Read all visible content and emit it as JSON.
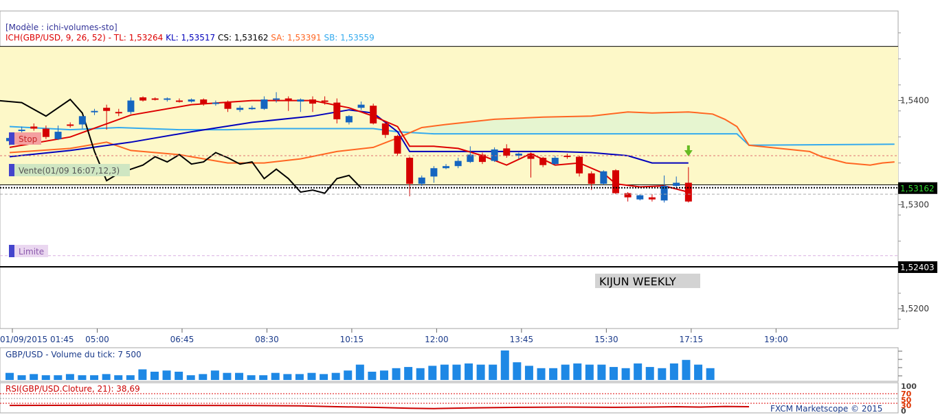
{
  "main": {
    "model_label": "[Modèle : ichi-volumes-sto]",
    "ichimoku_prefix": "ICH(GBP/USD, 9, 26, 52) - ",
    "tl": "TL: 1,53264",
    "kl": "KL: 1,53517",
    "cs": "CS: 1,53162",
    "sa": "SA: 1,53391",
    "sb": "SB: 1,53559",
    "stop_label": "Stop",
    "sell_label": "Vente(01/09 16:07,12,3)",
    "limit_label": "Limite",
    "kijun_label": "KIJUN WEEKLY",
    "current_price_badge": "1,53162",
    "kijun_price_badge": "1,52403"
  },
  "volume_panel": {
    "title": "GBP/USD - Volume du tick: 7 500"
  },
  "rsi_panel": {
    "title": "RSI(GBP/USD.Cloture, 21): 38,69",
    "levels": [
      "100",
      "70",
      "50",
      "30",
      "0"
    ]
  },
  "footer": {
    "copyright": "FXCM Marketscope © 2015"
  },
  "colors": {
    "tenkan": "#dd0000",
    "kijun": "#0000bb",
    "chikou": "#000000",
    "senkou_a": "#ff6622",
    "senkou_b": "#33aaee",
    "bull_candle": "#1565c0",
    "bear_candle": "#d50000",
    "volume_bar": "#1e88e5",
    "band_fill": "#fdf8c8",
    "cloud_fill": "#e6f5d0",
    "price_badge_bg": "#000000",
    "price_badge_fg": "#33dd33"
  },
  "chart_data": {
    "type": "candlestick",
    "symbol": "GBP/USD",
    "x_tick_labels": [
      "01/09/2015 01:45",
      "05:00",
      "06:45",
      "08:30",
      "10:15",
      "12:00",
      "13:45",
      "15:30",
      "17:15",
      "19:00"
    ],
    "y_tick_labels": [
      "1,5400",
      "1,5300",
      "1,5200"
    ],
    "y_range": [
      1.5181,
      1.5486
    ],
    "reference_levels": {
      "upper_band": 1.5452,
      "lower_band": 1.5319,
      "current_price": 1.53162,
      "kijun_weekly": 1.52403,
      "stop": 1.5347,
      "entry": 1.5316,
      "limit": 1.5251
    },
    "candles": [
      {
        "o": 1.5361,
        "h": 1.5365,
        "l": 1.5357,
        "c": 1.5364
      },
      {
        "o": 1.5371,
        "h": 1.5375,
        "l": 1.5368,
        "c": 1.5372
      },
      {
        "o": 1.5375,
        "h": 1.5378,
        "l": 1.5371,
        "c": 1.5373
      },
      {
        "o": 1.5373,
        "h": 1.5376,
        "l": 1.5363,
        "c": 1.5365
      },
      {
        "o": 1.5363,
        "h": 1.5376,
        "l": 1.5362,
        "c": 1.537
      },
      {
        "o": 1.5377,
        "h": 1.5379,
        "l": 1.5374,
        "c": 1.5376
      },
      {
        "o": 1.5377,
        "h": 1.5384,
        "l": 1.5373,
        "c": 1.5385
      },
      {
        "o": 1.5389,
        "h": 1.5392,
        "l": 1.5386,
        "c": 1.539
      },
      {
        "o": 1.5393,
        "h": 1.5396,
        "l": 1.5372,
        "c": 1.539
      },
      {
        "o": 1.5389,
        "h": 1.5392,
        "l": 1.5385,
        "c": 1.5388
      },
      {
        "o": 1.5389,
        "h": 1.5403,
        "l": 1.5387,
        "c": 1.54
      },
      {
        "o": 1.5403,
        "h": 1.5404,
        "l": 1.5399,
        "c": 1.54
      },
      {
        "o": 1.5402,
        "h": 1.5403,
        "l": 1.54,
        "c": 1.5401
      },
      {
        "o": 1.5401,
        "h": 1.5403,
        "l": 1.5399,
        "c": 1.5402
      },
      {
        "o": 1.54,
        "h": 1.5402,
        "l": 1.5398,
        "c": 1.5399
      },
      {
        "o": 1.5399,
        "h": 1.5402,
        "l": 1.5398,
        "c": 1.5401
      },
      {
        "o": 1.5401,
        "h": 1.5402,
        "l": 1.5395,
        "c": 1.5397
      },
      {
        "o": 1.5397,
        "h": 1.54,
        "l": 1.5395,
        "c": 1.5398
      },
      {
        "o": 1.5398,
        "h": 1.54,
        "l": 1.5389,
        "c": 1.5392
      },
      {
        "o": 1.5391,
        "h": 1.5395,
        "l": 1.5389,
        "c": 1.5393
      },
      {
        "o": 1.5393,
        "h": 1.5395,
        "l": 1.5391,
        "c": 1.5393
      },
      {
        "o": 1.5392,
        "h": 1.5404,
        "l": 1.5391,
        "c": 1.5401
      },
      {
        "o": 1.5401,
        "h": 1.5408,
        "l": 1.5398,
        "c": 1.5402
      },
      {
        "o": 1.5402,
        "h": 1.5404,
        "l": 1.539,
        "c": 1.54
      },
      {
        "o": 1.5399,
        "h": 1.5402,
        "l": 1.5389,
        "c": 1.5401
      },
      {
        "o": 1.5401,
        "h": 1.5404,
        "l": 1.5389,
        "c": 1.5397
      },
      {
        "o": 1.54,
        "h": 1.5404,
        "l": 1.5396,
        "c": 1.5399
      },
      {
        "o": 1.5398,
        "h": 1.5402,
        "l": 1.5378,
        "c": 1.5382
      },
      {
        "o": 1.5379,
        "h": 1.5386,
        "l": 1.5377,
        "c": 1.5385
      },
      {
        "o": 1.5393,
        "h": 1.5399,
        "l": 1.5391,
        "c": 1.5396
      },
      {
        "o": 1.5395,
        "h": 1.5397,
        "l": 1.5377,
        "c": 1.5378
      },
      {
        "o": 1.5378,
        "h": 1.5379,
        "l": 1.5364,
        "c": 1.5367
      },
      {
        "o": 1.5366,
        "h": 1.5367,
        "l": 1.5347,
        "c": 1.5349
      },
      {
        "o": 1.5345,
        "h": 1.5346,
        "l": 1.5308,
        "c": 1.532
      },
      {
        "o": 1.532,
        "h": 1.5328,
        "l": 1.5318,
        "c": 1.5326
      },
      {
        "o": 1.5327,
        "h": 1.5337,
        "l": 1.5321,
        "c": 1.5335
      },
      {
        "o": 1.5335,
        "h": 1.5339,
        "l": 1.5334,
        "c": 1.5337
      },
      {
        "o": 1.5337,
        "h": 1.5345,
        "l": 1.5335,
        "c": 1.5342
      },
      {
        "o": 1.5341,
        "h": 1.5356,
        "l": 1.534,
        "c": 1.5348
      },
      {
        "o": 1.5348,
        "h": 1.535,
        "l": 1.5339,
        "c": 1.5341
      },
      {
        "o": 1.5342,
        "h": 1.5355,
        "l": 1.5341,
        "c": 1.5353
      },
      {
        "o": 1.5354,
        "h": 1.5358,
        "l": 1.5345,
        "c": 1.5347
      },
      {
        "o": 1.5347,
        "h": 1.535,
        "l": 1.5344,
        "c": 1.5349
      },
      {
        "o": 1.5349,
        "h": 1.535,
        "l": 1.5326,
        "c": 1.5344
      },
      {
        "o": 1.5345,
        "h": 1.5346,
        "l": 1.5336,
        "c": 1.5338
      },
      {
        "o": 1.5339,
        "h": 1.5347,
        "l": 1.5338,
        "c": 1.5345
      },
      {
        "o": 1.5347,
        "h": 1.5349,
        "l": 1.5344,
        "c": 1.5346
      },
      {
        "o": 1.5346,
        "h": 1.5347,
        "l": 1.5327,
        "c": 1.533
      },
      {
        "o": 1.533,
        "h": 1.5332,
        "l": 1.5314,
        "c": 1.532
      },
      {
        "o": 1.532,
        "h": 1.5333,
        "l": 1.5319,
        "c": 1.5332
      },
      {
        "o": 1.5333,
        "h": 1.5334,
        "l": 1.531,
        "c": 1.5311
      },
      {
        "o": 1.5311,
        "h": 1.5312,
        "l": 1.5303,
        "c": 1.5307
      },
      {
        "o": 1.5305,
        "h": 1.531,
        "l": 1.5304,
        "c": 1.5309
      },
      {
        "o": 1.5307,
        "h": 1.531,
        "l": 1.5303,
        "c": 1.5305
      },
      {
        "o": 1.5304,
        "h": 1.5328,
        "l": 1.5302,
        "c": 1.5318
      },
      {
        "o": 1.5318,
        "h": 1.5327,
        "l": 1.5315,
        "c": 1.5321
      },
      {
        "o": 1.5321,
        "h": 1.5336,
        "l": 1.5302,
        "c": 1.5303
      }
    ],
    "tenkan_sen": [
      [
        0,
        1.5355
      ],
      [
        5,
        1.5365
      ],
      [
        10,
        1.5386
      ],
      [
        15,
        1.5396
      ],
      [
        20,
        1.54
      ],
      [
        25,
        1.54
      ],
      [
        28,
        1.5393
      ],
      [
        30,
        1.5385
      ],
      [
        32,
        1.5375
      ],
      [
        33,
        1.5356
      ],
      [
        35,
        1.5356
      ],
      [
        37,
        1.5354
      ],
      [
        39,
        1.5347
      ],
      [
        41,
        1.5338
      ],
      [
        43,
        1.5349
      ],
      [
        45,
        1.5338
      ],
      [
        47,
        1.534
      ],
      [
        49,
        1.533
      ],
      [
        50,
        1.532
      ],
      [
        52,
        1.5317
      ],
      [
        54,
        1.5318
      ],
      [
        56,
        1.5312
      ]
    ],
    "kijun_sen": [
      [
        0,
        1.5346
      ],
      [
        5,
        1.5352
      ],
      [
        10,
        1.536
      ],
      [
        15,
        1.537
      ],
      [
        20,
        1.5379
      ],
      [
        25,
        1.5385
      ],
      [
        28,
        1.5391
      ],
      [
        30,
        1.5388
      ],
      [
        32,
        1.537
      ],
      [
        33,
        1.5351
      ],
      [
        39,
        1.5351
      ],
      [
        45,
        1.5351
      ],
      [
        48,
        1.535
      ],
      [
        51,
        1.5347
      ],
      [
        53,
        1.534
      ],
      [
        56,
        1.534
      ]
    ],
    "chikou_span": [
      [
        -1,
        1.54
      ],
      [
        1,
        1.5398
      ],
      [
        3,
        1.5385
      ],
      [
        5,
        1.5401
      ],
      [
        6,
        1.5388
      ],
      [
        7,
        1.5351
      ],
      [
        8,
        1.5323
      ],
      [
        9,
        1.533
      ],
      [
        10,
        1.5334
      ],
      [
        11,
        1.5338
      ],
      [
        12,
        1.5346
      ],
      [
        13,
        1.5341
      ],
      [
        14,
        1.5348
      ],
      [
        15,
        1.5339
      ],
      [
        16,
        1.5341
      ],
      [
        17,
        1.535
      ],
      [
        18,
        1.5345
      ],
      [
        19,
        1.5339
      ],
      [
        20,
        1.5341
      ],
      [
        21,
        1.5325
      ],
      [
        22,
        1.5334
      ],
      [
        23,
        1.5325
      ],
      [
        24,
        1.5312
      ],
      [
        25,
        1.5314
      ],
      [
        26,
        1.5311
      ],
      [
        27,
        1.5325
      ],
      [
        28,
        1.5328
      ],
      [
        29,
        1.5316
      ]
    ],
    "senkou_span_a": [
      [
        0,
        1.535
      ],
      [
        5,
        1.5354
      ],
      [
        8,
        1.536
      ],
      [
        10,
        1.5352
      ],
      [
        14,
        1.5348
      ],
      [
        18,
        1.534
      ],
      [
        21,
        1.534
      ],
      [
        24,
        1.5344
      ],
      [
        27,
        1.5351
      ],
      [
        30,
        1.5355
      ],
      [
        32,
        1.5364
      ],
      [
        34,
        1.5374
      ],
      [
        36,
        1.5377
      ],
      [
        40,
        1.5382
      ],
      [
        44,
        1.5384
      ],
      [
        48,
        1.5385
      ],
      [
        51,
        1.5389
      ],
      [
        53,
        1.5388
      ],
      [
        56,
        1.5389
      ],
      [
        58,
        1.5387
      ],
      [
        59,
        1.5382
      ],
      [
        60,
        1.5375
      ],
      [
        61,
        1.5357
      ],
      [
        66,
        1.5351
      ],
      [
        67,
        1.5346
      ],
      [
        69,
        1.534
      ],
      [
        71,
        1.5338
      ],
      [
        72,
        1.534
      ],
      [
        73,
        1.5341
      ]
    ],
    "senkou_span_b": [
      [
        0,
        1.5375
      ],
      [
        5,
        1.5372
      ],
      [
        9,
        1.5374
      ],
      [
        14,
        1.5372
      ],
      [
        18,
        1.5372
      ],
      [
        22,
        1.5373
      ],
      [
        26,
        1.5373
      ],
      [
        30,
        1.5373
      ],
      [
        32,
        1.537
      ],
      [
        35,
        1.5368
      ],
      [
        40,
        1.5368
      ],
      [
        45,
        1.5368
      ],
      [
        50,
        1.5368
      ],
      [
        55,
        1.5368
      ],
      [
        60,
        1.5368
      ],
      [
        61,
        1.5357
      ],
      [
        73,
        1.5358
      ]
    ],
    "volume": [
      6,
      4,
      5,
      4,
      4,
      5,
      4,
      4,
      5,
      4,
      4,
      9,
      7,
      8,
      7,
      4,
      5,
      8,
      6,
      6,
      4,
      4,
      6,
      5,
      5,
      6,
      5,
      6,
      8,
      13,
      7,
      8,
      10,
      11,
      10,
      12,
      13,
      13,
      14,
      13,
      13,
      25,
      15,
      12,
      10,
      10,
      13,
      14,
      13,
      13,
      11,
      10,
      14,
      11,
      10,
      14,
      17,
      13,
      10,
      10,
      15,
      12,
      14
    ],
    "rsi": [
      [
        0,
        38.5
      ],
      [
        7,
        39
      ],
      [
        14,
        38.5
      ],
      [
        20,
        38
      ],
      [
        24,
        37
      ],
      [
        27,
        34
      ],
      [
        30,
        32
      ],
      [
        33,
        29
      ],
      [
        35,
        28
      ],
      [
        38,
        30
      ],
      [
        42,
        32
      ],
      [
        46,
        33
      ],
      [
        50,
        32
      ],
      [
        53,
        33
      ],
      [
        55,
        34
      ],
      [
        57,
        33
      ],
      [
        59,
        35
      ],
      [
        61,
        34
      ]
    ]
  }
}
